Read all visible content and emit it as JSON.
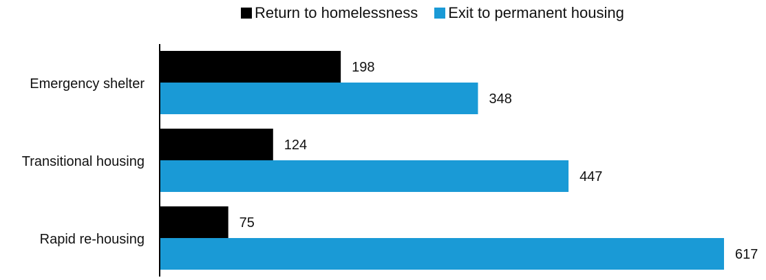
{
  "chart_data": {
    "type": "bar",
    "orientation": "horizontal",
    "categories": [
      "Emergency shelter",
      "Transitional housing",
      "Rapid re-housing"
    ],
    "series": [
      {
        "name": "Return to homelessness",
        "values": [
          198,
          124,
          75
        ],
        "color": "#000000"
      },
      {
        "name": "Exit to permanent housing",
        "values": [
          348,
          447,
          617
        ],
        "color": "#1a9ad6"
      }
    ],
    "xlim": [
      0,
      617
    ],
    "grid": false,
    "legend_position": "top-right"
  }
}
